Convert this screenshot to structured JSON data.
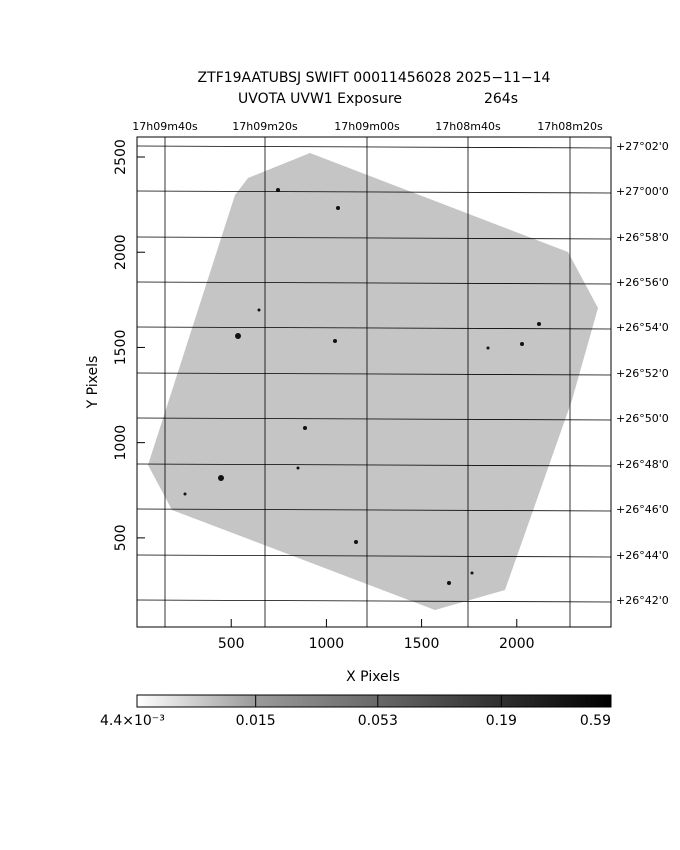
{
  "chart_data": {
    "type": "image",
    "title": "ZTF19AATUBSJ SWIFT 00011456028 2025−11−14",
    "subtitle": "UVOTA UVW1 Exposure",
    "exposure": "264s",
    "x_label": "X Pixels",
    "y_label": "Y Pixels",
    "xlim": [
      5,
      2495
    ],
    "xticks": [
      500,
      1000,
      1500,
      2000
    ],
    "ylim": [
      32,
      2605
    ],
    "yticks": [
      500,
      1000,
      1500,
      2000,
      2500
    ],
    "top_ticks": [
      "17h09m40s",
      "17h09m20s",
      "17h09m00s",
      "17h08m40s",
      "17h08m20s"
    ],
    "right_ticks": [
      "+27°02'0",
      "+27°00'0",
      "+26°58'0",
      "+26°56'0",
      "+26°54'0",
      "+26°52'0",
      "+26°50'0",
      "+26°48'0",
      "+26°46'0",
      "+26°44'0",
      "+26°42'0"
    ],
    "colorbar": {
      "log": true,
      "lim": [
        0.0044,
        0.59
      ],
      "ticks": [
        {
          "value": 0.0044,
          "label": "4.4×10⁻³"
        },
        0.015,
        0.053,
        0.19,
        0.59
      ]
    }
  }
}
